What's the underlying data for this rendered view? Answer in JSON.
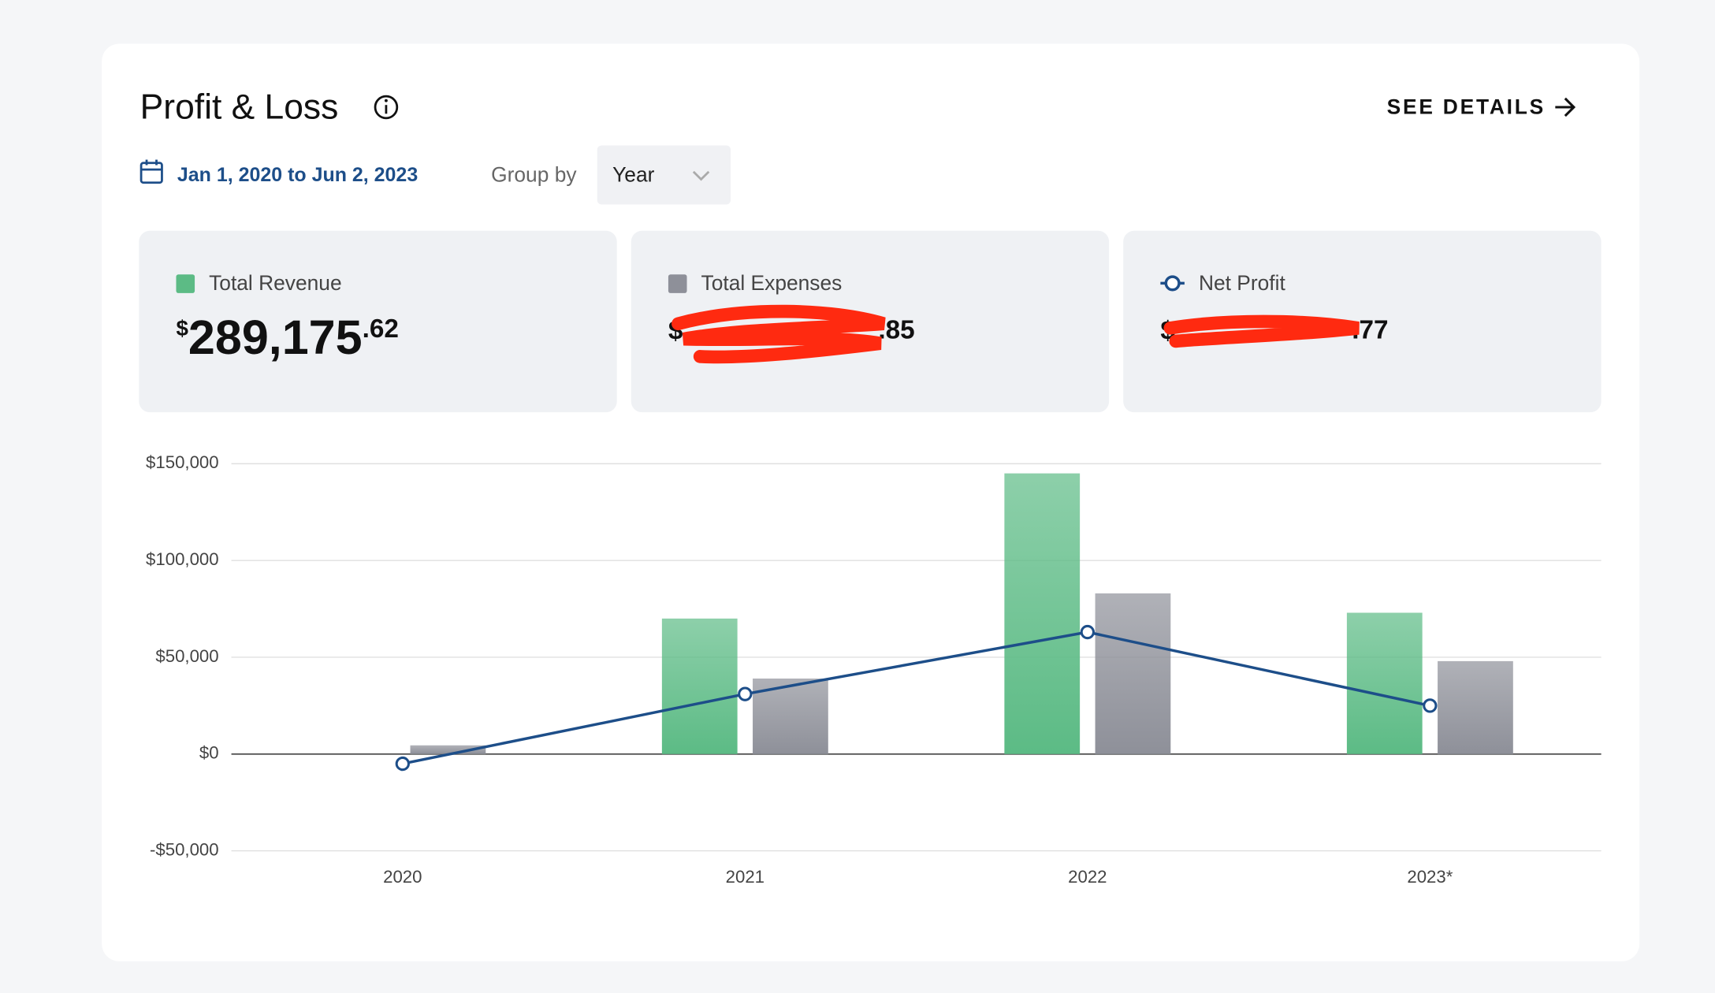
{
  "header": {
    "title": "Profit & Loss",
    "action": "SEE DETAILS"
  },
  "filters": {
    "date_range": "Jan 1, 2020 to Jun 2, 2023",
    "group_by_label": "Group by",
    "group_by_value": "Year"
  },
  "summary": [
    {
      "currency": "$",
      "whole": "289,175",
      "cents": ".62"
    },
    {
      "currency": "$",
      "cents": ".85"
    },
    {
      "currency": "$",
      "cents": ".77"
    }
  ],
  "chart_data": {
    "type": "bar",
    "categories": [
      "2020",
      "2021",
      "2022",
      "2023*"
    ],
    "series": [
      {
        "name": "Total Revenue",
        "color": "#5cbb85",
        "type": "bar",
        "values": [
          0,
          70000,
          145000,
          73000
        ]
      },
      {
        "name": "Total Expenses",
        "color": "#8e9099",
        "type": "bar",
        "values": [
          4500,
          39000,
          83000,
          48000
        ]
      },
      {
        "name": "Net Profit",
        "color": "#1d4e89",
        "type": "line",
        "values": [
          -5000,
          31000,
          63000,
          25000
        ]
      }
    ],
    "ylim": [
      -50000,
      150000
    ],
    "yticks": [
      {
        "value": -50000,
        "label": "-$50,000"
      },
      {
        "value": 0,
        "label": "$0"
      },
      {
        "value": 50000,
        "label": "$50,000"
      },
      {
        "value": 100000,
        "label": "$100,000"
      },
      {
        "value": 150000,
        "label": "$150,000"
      }
    ],
    "grid": true
  }
}
